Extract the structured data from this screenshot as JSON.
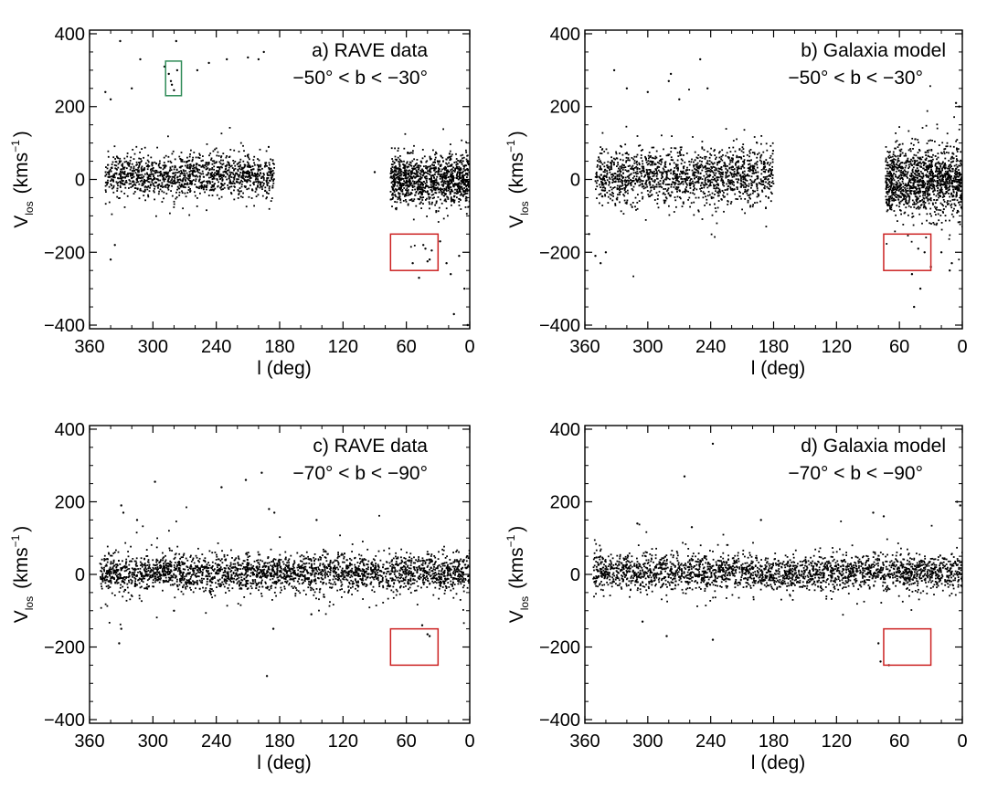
{
  "chart_data": [
    {
      "id": "a",
      "type": "scatter",
      "title": "a) RAVE data",
      "subtitle": "−50° < b < −30°",
      "xlabel": "l (deg)",
      "ylabel_main": "V",
      "ylabel_sub": "los",
      "ylabel_unit_pre": "(kms",
      "ylabel_unit_sup": "−1",
      "ylabel_unit_post": ")",
      "xlim": [
        360,
        0
      ],
      "ylim": [
        -410,
        410
      ],
      "xticks": [
        360,
        300,
        240,
        180,
        120,
        60,
        0
      ],
      "xtick_labels": [
        "360",
        "300",
        "240",
        "180",
        "120",
        "60",
        "0"
      ],
      "yticks": [
        400,
        200,
        0,
        -200,
        -400
      ],
      "ytick_labels": [
        "400",
        "200",
        "0",
        "−200",
        "−400"
      ],
      "clusters": [
        {
          "l_range": [
            345,
            185
          ],
          "v_center": 10,
          "v_sigma": 28,
          "count": 1300
        },
        {
          "l_range": [
            75,
            0
          ],
          "v_center": 0,
          "v_sigma": 35,
          "count": 1100
        }
      ],
      "outliers": [
        [
          331,
          380
        ],
        [
          312,
          330
        ],
        [
          289,
          310
        ],
        [
          285,
          290
        ],
        [
          283,
          270
        ],
        [
          282,
          260
        ],
        [
          280,
          245
        ],
        [
          277,
          300
        ],
        [
          278,
          380
        ],
        [
          258,
          300
        ],
        [
          247,
          320
        ],
        [
          230,
          330
        ],
        [
          210,
          335
        ],
        [
          200,
          330
        ],
        [
          195,
          350
        ],
        [
          345,
          240
        ],
        [
          340,
          220
        ],
        [
          336,
          -180
        ],
        [
          340,
          -220
        ],
        [
          320,
          250
        ],
        [
          44,
          -180
        ],
        [
          42,
          -190
        ],
        [
          40,
          -225
        ],
        [
          38,
          -220
        ],
        [
          36,
          -195
        ],
        [
          54,
          -230
        ],
        [
          48,
          -270
        ],
        [
          22,
          -230
        ],
        [
          18,
          -260
        ],
        [
          15,
          -370
        ],
        [
          5,
          -300
        ],
        [
          2,
          -400
        ],
        [
          28,
          -170
        ],
        [
          10,
          -210
        ],
        [
          90,
          20
        ],
        [
          70,
          -80
        ]
      ],
      "boxes": [
        {
          "color": "#2e8b57",
          "l": [
            288,
            273
          ],
          "v": [
            230,
            325
          ]
        },
        {
          "color": "#cc2222",
          "l": [
            75,
            30
          ],
          "v": [
            -150,
            -250
          ]
        }
      ]
    },
    {
      "id": "b",
      "type": "scatter",
      "title": "b) Galaxia model",
      "subtitle": "−50° < b < −30°",
      "xlabel": "l (deg)",
      "ylabel_main": "V",
      "ylabel_sub": "los",
      "ylabel_unit_pre": "(kms",
      "ylabel_unit_sup": "−1",
      "ylabel_unit_post": ")",
      "xlim": [
        360,
        0
      ],
      "ylim": [
        -410,
        410
      ],
      "xticks": [
        360,
        300,
        240,
        180,
        120,
        60,
        0
      ],
      "xtick_labels": [
        "360",
        "300",
        "240",
        "180",
        "120",
        "60",
        "0"
      ],
      "yticks": [
        400,
        200,
        0,
        -200,
        -400
      ],
      "ytick_labels": [
        "400",
        "200",
        "0",
        "−200",
        "−400"
      ],
      "clusters": [
        {
          "l_range": [
            350,
            180
          ],
          "v_center": 8,
          "v_sigma": 38,
          "count": 1500
        },
        {
          "l_range": [
            73,
            0
          ],
          "v_center": -5,
          "v_sigma": 45,
          "count": 1300
        }
      ],
      "outliers": [
        [
          332,
          300
        ],
        [
          320,
          250
        ],
        [
          300,
          240
        ],
        [
          280,
          270
        ],
        [
          278,
          290
        ],
        [
          270,
          220
        ],
        [
          250,
          330
        ],
        [
          243,
          250
        ],
        [
          356,
          -150
        ],
        [
          350,
          -210
        ],
        [
          345,
          -230
        ],
        [
          340,
          -200
        ],
        [
          36,
          -200
        ],
        [
          42,
          -190
        ],
        [
          40,
          -300
        ],
        [
          46,
          -350
        ],
        [
          48,
          -260
        ],
        [
          30,
          -240
        ],
        [
          20,
          -200
        ],
        [
          12,
          -250
        ],
        [
          10,
          -230
        ],
        [
          6,
          210
        ],
        [
          3,
          200
        ]
      ],
      "boxes": [
        {
          "color": "#cc2222",
          "l": [
            75,
            30
          ],
          "v": [
            -150,
            -250
          ]
        }
      ]
    },
    {
      "id": "c",
      "type": "scatter",
      "title": "c) RAVE data",
      "subtitle": "−70° < b < −90°",
      "xlabel": "l (deg)",
      "ylabel_main": "V",
      "ylabel_sub": "los",
      "ylabel_unit_pre": "(kms",
      "ylabel_unit_sup": "−1",
      "ylabel_unit_post": ")",
      "xlim": [
        360,
        0
      ],
      "ylim": [
        -410,
        410
      ],
      "xticks": [
        360,
        300,
        240,
        180,
        120,
        60,
        0
      ],
      "xtick_labels": [
        "360",
        "300",
        "240",
        "180",
        "120",
        "60",
        "0"
      ],
      "yticks": [
        400,
        200,
        0,
        -200,
        -400
      ],
      "ytick_labels": [
        "400",
        "200",
        "0",
        "−200",
        "−400"
      ],
      "clusters": [
        {
          "l_range": [
            350,
            0
          ],
          "v_center": 5,
          "v_sigma": 25,
          "count": 2600
        }
      ],
      "outliers": [
        [
          330,
          190
        ],
        [
          328,
          170
        ],
        [
          315,
          150
        ],
        [
          298,
          255
        ],
        [
          235,
          240
        ],
        [
          212,
          260
        ],
        [
          197,
          280
        ],
        [
          190,
          180
        ],
        [
          185,
          170
        ],
        [
          145,
          150
        ],
        [
          330,
          -150
        ],
        [
          332,
          -190
        ],
        [
          192,
          -280
        ],
        [
          186,
          -150
        ],
        [
          45,
          -140
        ],
        [
          40,
          -165
        ],
        [
          38,
          -170
        ],
        [
          280,
          -100
        ],
        [
          150,
          -110
        ]
      ],
      "boxes": [
        {
          "color": "#cc2222",
          "l": [
            75,
            30
          ],
          "v": [
            -150,
            -250
          ]
        }
      ]
    },
    {
      "id": "d",
      "type": "scatter",
      "title": "d) Galaxia model",
      "subtitle": "−70° < b < −90°",
      "xlabel": "l (deg)",
      "ylabel_main": "V",
      "ylabel_sub": "los",
      "ylabel_unit_pre": "(kms",
      "ylabel_unit_sup": "−1",
      "ylabel_unit_post": ")",
      "xlim": [
        360,
        0
      ],
      "ylim": [
        -410,
        410
      ],
      "xticks": [
        360,
        300,
        240,
        180,
        120,
        60,
        0
      ],
      "xtick_labels": [
        "360",
        "300",
        "240",
        "180",
        "120",
        "60",
        "0"
      ],
      "yticks": [
        400,
        200,
        0,
        -200,
        -400
      ],
      "ytick_labels": [
        "400",
        "200",
        "0",
        "−200",
        "−400"
      ],
      "clusters": [
        {
          "l_range": [
            352,
            0
          ],
          "v_center": 5,
          "v_sigma": 24,
          "count": 2400
        }
      ],
      "outliers": [
        [
          238,
          360
        ],
        [
          265,
          270
        ],
        [
          310,
          140
        ],
        [
          258,
          130
        ],
        [
          192,
          150
        ],
        [
          85,
          170
        ],
        [
          75,
          160
        ],
        [
          5,
          200
        ],
        [
          2,
          190
        ],
        [
          305,
          -130
        ],
        [
          282,
          -170
        ],
        [
          238,
          -180
        ],
        [
          78,
          -240
        ],
        [
          70,
          -250
        ],
        [
          80,
          -190
        ]
      ],
      "boxes": [
        {
          "color": "#cc2222",
          "l": [
            75,
            30
          ],
          "v": [
            -150,
            -250
          ]
        }
      ]
    }
  ]
}
